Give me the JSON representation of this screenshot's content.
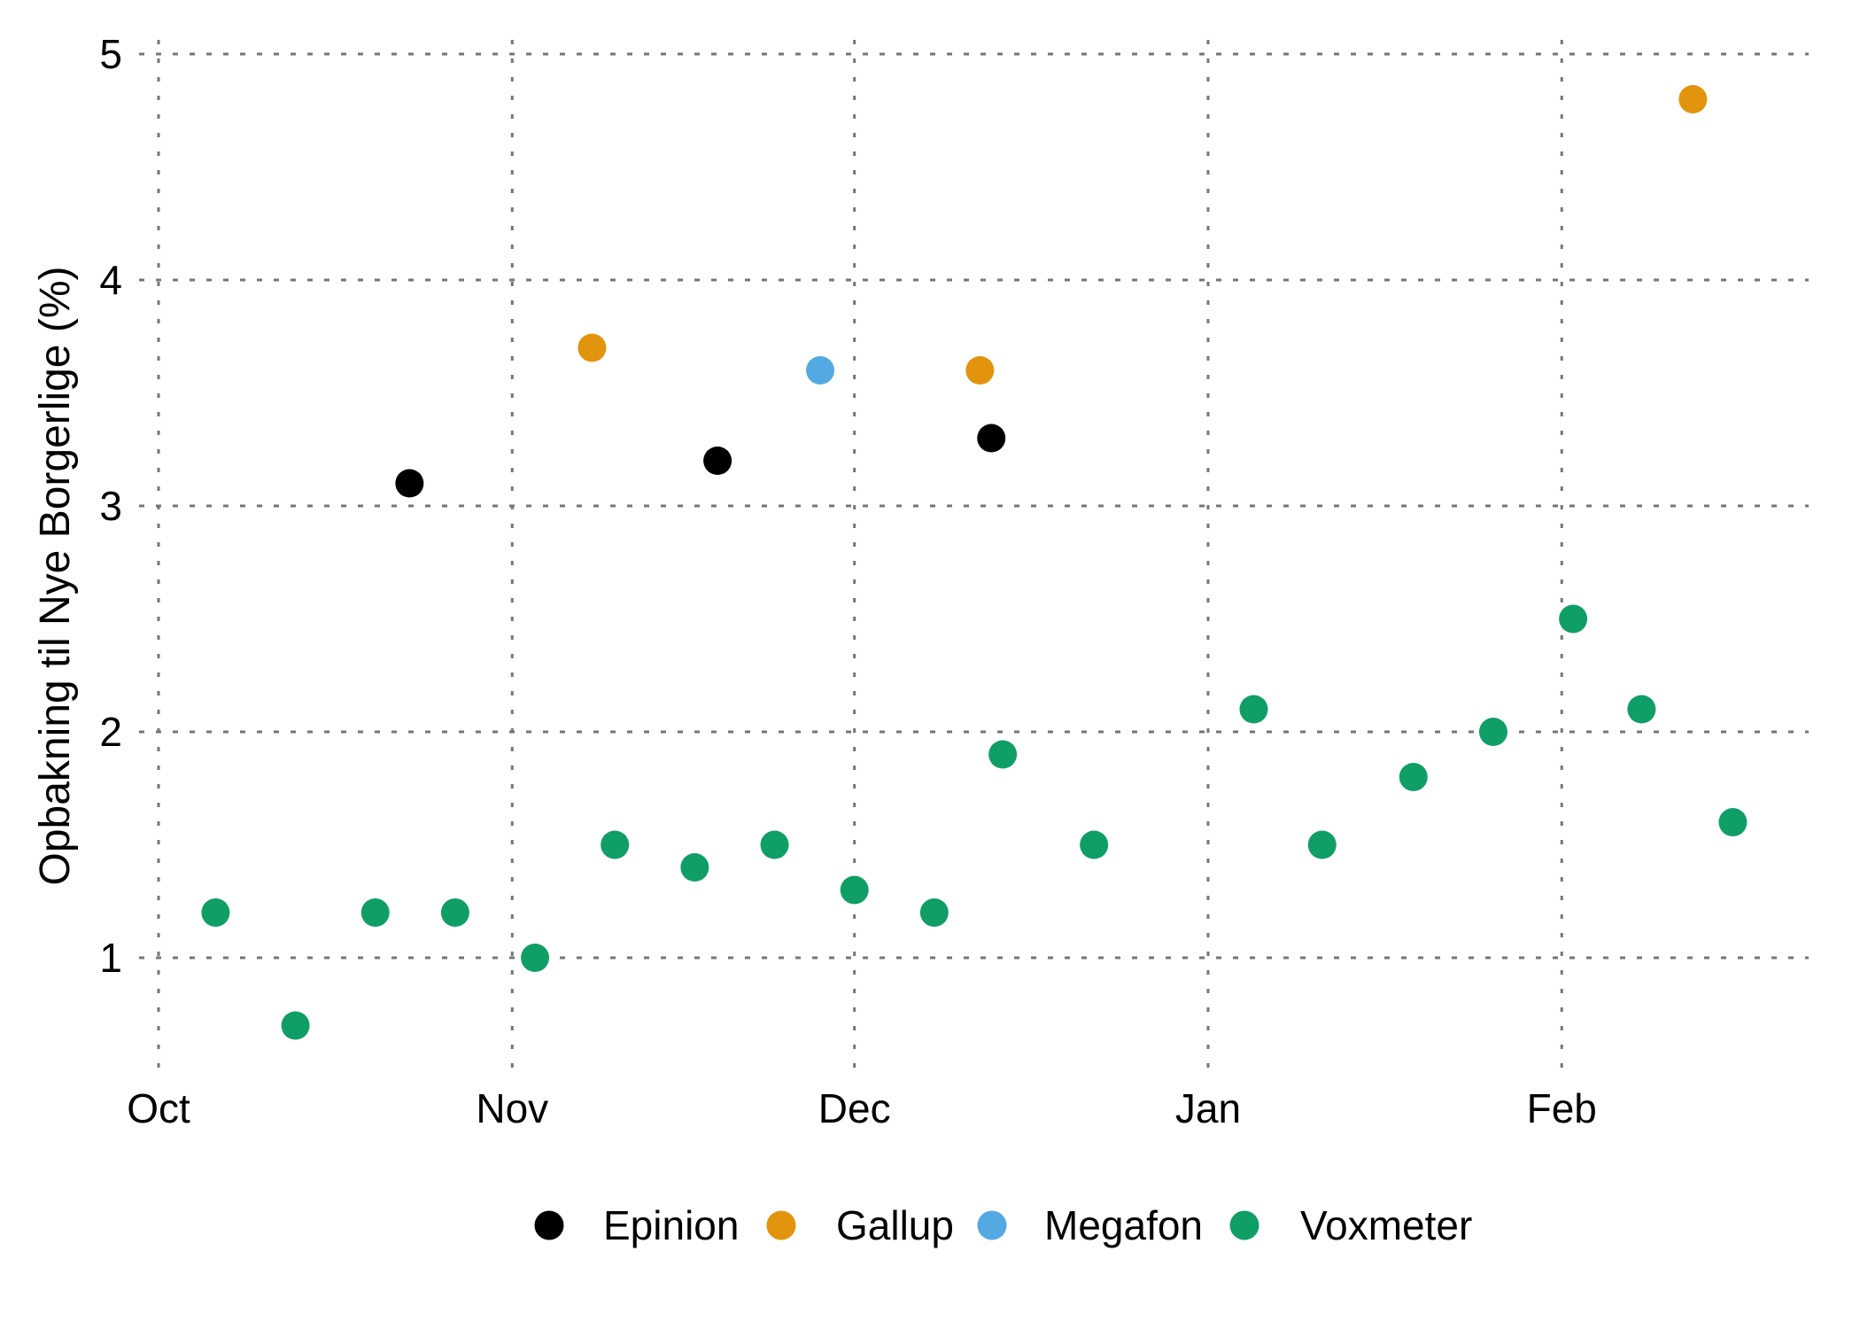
{
  "chart_data": {
    "type": "scatter",
    "title": "",
    "xlabel": "",
    "ylabel": "Opbakning til Nye Borgerlige (%)",
    "x_axis": {
      "unit": "days since Oct 1",
      "tick_labels": [
        "Oct",
        "Nov",
        "Dec",
        "Jan",
        "Feb"
      ],
      "tick_days": [
        0,
        31,
        61,
        92,
        123
      ],
      "domain_days": [
        -2,
        144
      ]
    },
    "y_axis": {
      "ticks": [
        "1",
        "2",
        "3",
        "4",
        "5"
      ],
      "tick_values": [
        1,
        2,
        3,
        4,
        5
      ],
      "domain": [
        0.6,
        5.1
      ]
    },
    "grid": {
      "style": "dotted",
      "color": "#767676",
      "background": "#ffffff"
    },
    "legend": {
      "position": "bottom",
      "entries": [
        "Epinion",
        "Gallup",
        "Megafon",
        "Voxmeter"
      ]
    },
    "series": [
      {
        "name": "Epinion",
        "color": "#000000",
        "points": [
          {
            "day": 22,
            "value": 3.1
          },
          {
            "day": 49,
            "value": 3.2
          },
          {
            "day": 73,
            "value": 3.3
          }
        ]
      },
      {
        "name": "Gallup",
        "color": "#E2940E",
        "points": [
          {
            "day": 38,
            "value": 3.7
          },
          {
            "day": 72,
            "value": 3.6
          },
          {
            "day": 134.5,
            "value": 4.8
          }
        ]
      },
      {
        "name": "Megafon",
        "color": "#55A9E2",
        "points": [
          {
            "day": 58,
            "value": 3.6
          }
        ]
      },
      {
        "name": "Voxmeter",
        "color": "#109E67",
        "points": [
          {
            "day": 5,
            "value": 1.2
          },
          {
            "day": 12,
            "value": 0.7
          },
          {
            "day": 19,
            "value": 1.2
          },
          {
            "day": 26,
            "value": 1.2
          },
          {
            "day": 33,
            "value": 1.0
          },
          {
            "day": 40,
            "value": 1.5
          },
          {
            "day": 47,
            "value": 1.4
          },
          {
            "day": 54,
            "value": 1.5
          },
          {
            "day": 61,
            "value": 1.3
          },
          {
            "day": 68,
            "value": 1.2
          },
          {
            "day": 74,
            "value": 1.9
          },
          {
            "day": 82,
            "value": 1.5
          },
          {
            "day": 96,
            "value": 2.1
          },
          {
            "day": 102,
            "value": 1.5
          },
          {
            "day": 110,
            "value": 1.8
          },
          {
            "day": 117,
            "value": 2.0
          },
          {
            "day": 124,
            "value": 2.5
          },
          {
            "day": 130,
            "value": 2.1
          },
          {
            "day": 138,
            "value": 1.6
          }
        ]
      }
    ]
  }
}
